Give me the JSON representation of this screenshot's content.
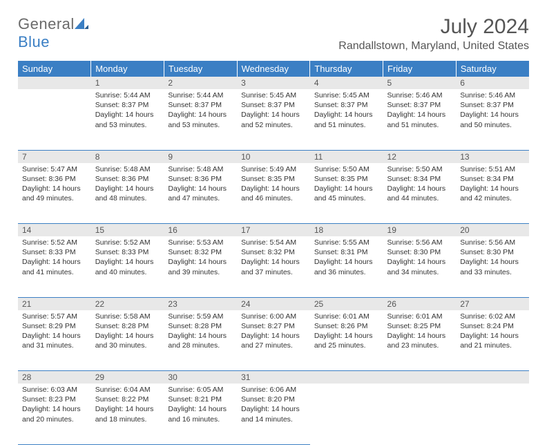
{
  "logo": {
    "textA": "General",
    "textB": "Blue",
    "color_text": "#6a6a6a",
    "color_blue": "#3b7fc4"
  },
  "header": {
    "title": "July 2024",
    "location": "Randallstown, Maryland, United States"
  },
  "colors": {
    "header_bg": "#3b7fc4",
    "daynum_bg": "#e8e8e8",
    "border": "#3b7fc4",
    "text": "#333333"
  },
  "weekdays": [
    "Sunday",
    "Monday",
    "Tuesday",
    "Wednesday",
    "Thursday",
    "Friday",
    "Saturday"
  ],
  "weeks": [
    [
      {
        "n": "",
        "sr": "",
        "ss": "",
        "dl": ""
      },
      {
        "n": "1",
        "sr": "Sunrise: 5:44 AM",
        "ss": "Sunset: 8:37 PM",
        "dl": "Daylight: 14 hours and 53 minutes."
      },
      {
        "n": "2",
        "sr": "Sunrise: 5:44 AM",
        "ss": "Sunset: 8:37 PM",
        "dl": "Daylight: 14 hours and 53 minutes."
      },
      {
        "n": "3",
        "sr": "Sunrise: 5:45 AM",
        "ss": "Sunset: 8:37 PM",
        "dl": "Daylight: 14 hours and 52 minutes."
      },
      {
        "n": "4",
        "sr": "Sunrise: 5:45 AM",
        "ss": "Sunset: 8:37 PM",
        "dl": "Daylight: 14 hours and 51 minutes."
      },
      {
        "n": "5",
        "sr": "Sunrise: 5:46 AM",
        "ss": "Sunset: 8:37 PM",
        "dl": "Daylight: 14 hours and 51 minutes."
      },
      {
        "n": "6",
        "sr": "Sunrise: 5:46 AM",
        "ss": "Sunset: 8:37 PM",
        "dl": "Daylight: 14 hours and 50 minutes."
      }
    ],
    [
      {
        "n": "7",
        "sr": "Sunrise: 5:47 AM",
        "ss": "Sunset: 8:36 PM",
        "dl": "Daylight: 14 hours and 49 minutes."
      },
      {
        "n": "8",
        "sr": "Sunrise: 5:48 AM",
        "ss": "Sunset: 8:36 PM",
        "dl": "Daylight: 14 hours and 48 minutes."
      },
      {
        "n": "9",
        "sr": "Sunrise: 5:48 AM",
        "ss": "Sunset: 8:36 PM",
        "dl": "Daylight: 14 hours and 47 minutes."
      },
      {
        "n": "10",
        "sr": "Sunrise: 5:49 AM",
        "ss": "Sunset: 8:35 PM",
        "dl": "Daylight: 14 hours and 46 minutes."
      },
      {
        "n": "11",
        "sr": "Sunrise: 5:50 AM",
        "ss": "Sunset: 8:35 PM",
        "dl": "Daylight: 14 hours and 45 minutes."
      },
      {
        "n": "12",
        "sr": "Sunrise: 5:50 AM",
        "ss": "Sunset: 8:34 PM",
        "dl": "Daylight: 14 hours and 44 minutes."
      },
      {
        "n": "13",
        "sr": "Sunrise: 5:51 AM",
        "ss": "Sunset: 8:34 PM",
        "dl": "Daylight: 14 hours and 42 minutes."
      }
    ],
    [
      {
        "n": "14",
        "sr": "Sunrise: 5:52 AM",
        "ss": "Sunset: 8:33 PM",
        "dl": "Daylight: 14 hours and 41 minutes."
      },
      {
        "n": "15",
        "sr": "Sunrise: 5:52 AM",
        "ss": "Sunset: 8:33 PM",
        "dl": "Daylight: 14 hours and 40 minutes."
      },
      {
        "n": "16",
        "sr": "Sunrise: 5:53 AM",
        "ss": "Sunset: 8:32 PM",
        "dl": "Daylight: 14 hours and 39 minutes."
      },
      {
        "n": "17",
        "sr": "Sunrise: 5:54 AM",
        "ss": "Sunset: 8:32 PM",
        "dl": "Daylight: 14 hours and 37 minutes."
      },
      {
        "n": "18",
        "sr": "Sunrise: 5:55 AM",
        "ss": "Sunset: 8:31 PM",
        "dl": "Daylight: 14 hours and 36 minutes."
      },
      {
        "n": "19",
        "sr": "Sunrise: 5:56 AM",
        "ss": "Sunset: 8:30 PM",
        "dl": "Daylight: 14 hours and 34 minutes."
      },
      {
        "n": "20",
        "sr": "Sunrise: 5:56 AM",
        "ss": "Sunset: 8:30 PM",
        "dl": "Daylight: 14 hours and 33 minutes."
      }
    ],
    [
      {
        "n": "21",
        "sr": "Sunrise: 5:57 AM",
        "ss": "Sunset: 8:29 PM",
        "dl": "Daylight: 14 hours and 31 minutes."
      },
      {
        "n": "22",
        "sr": "Sunrise: 5:58 AM",
        "ss": "Sunset: 8:28 PM",
        "dl": "Daylight: 14 hours and 30 minutes."
      },
      {
        "n": "23",
        "sr": "Sunrise: 5:59 AM",
        "ss": "Sunset: 8:28 PM",
        "dl": "Daylight: 14 hours and 28 minutes."
      },
      {
        "n": "24",
        "sr": "Sunrise: 6:00 AM",
        "ss": "Sunset: 8:27 PM",
        "dl": "Daylight: 14 hours and 27 minutes."
      },
      {
        "n": "25",
        "sr": "Sunrise: 6:01 AM",
        "ss": "Sunset: 8:26 PM",
        "dl": "Daylight: 14 hours and 25 minutes."
      },
      {
        "n": "26",
        "sr": "Sunrise: 6:01 AM",
        "ss": "Sunset: 8:25 PM",
        "dl": "Daylight: 14 hours and 23 minutes."
      },
      {
        "n": "27",
        "sr": "Sunrise: 6:02 AM",
        "ss": "Sunset: 8:24 PM",
        "dl": "Daylight: 14 hours and 21 minutes."
      }
    ],
    [
      {
        "n": "28",
        "sr": "Sunrise: 6:03 AM",
        "ss": "Sunset: 8:23 PM",
        "dl": "Daylight: 14 hours and 20 minutes."
      },
      {
        "n": "29",
        "sr": "Sunrise: 6:04 AM",
        "ss": "Sunset: 8:22 PM",
        "dl": "Daylight: 14 hours and 18 minutes."
      },
      {
        "n": "30",
        "sr": "Sunrise: 6:05 AM",
        "ss": "Sunset: 8:21 PM",
        "dl": "Daylight: 14 hours and 16 minutes."
      },
      {
        "n": "31",
        "sr": "Sunrise: 6:06 AM",
        "ss": "Sunset: 8:20 PM",
        "dl": "Daylight: 14 hours and 14 minutes."
      },
      {
        "n": "",
        "sr": "",
        "ss": "",
        "dl": ""
      },
      {
        "n": "",
        "sr": "",
        "ss": "",
        "dl": ""
      },
      {
        "n": "",
        "sr": "",
        "ss": "",
        "dl": ""
      }
    ]
  ]
}
